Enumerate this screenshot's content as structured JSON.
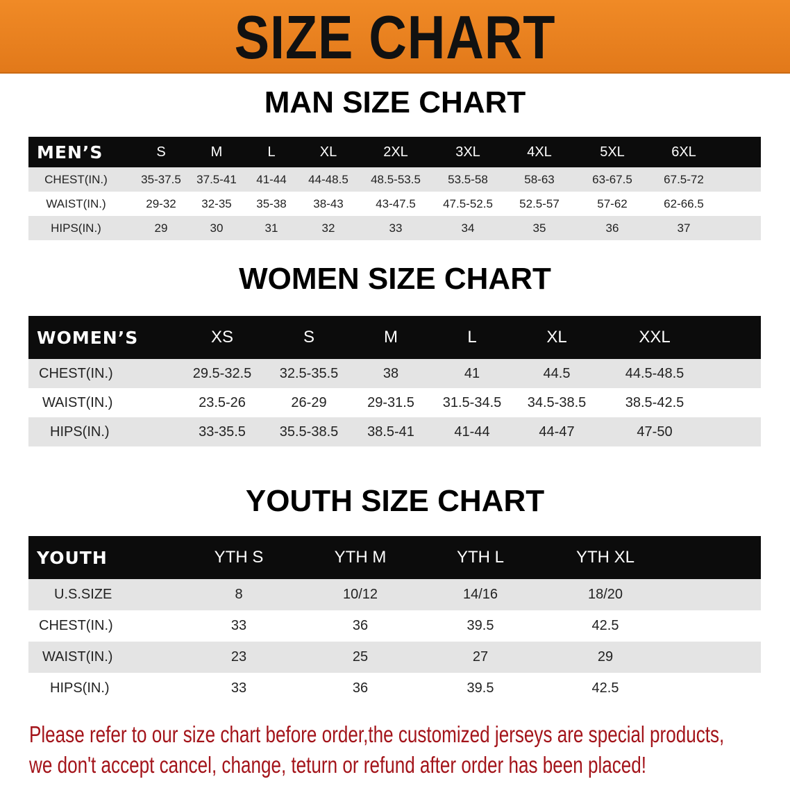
{
  "banner": {
    "title": "SIZE CHART",
    "color": "#e8821e"
  },
  "men": {
    "title": "MAN SIZE CHART",
    "header": [
      "MEN’S",
      "S",
      "M",
      "L",
      "XL",
      "2XL",
      "3XL",
      "4XL",
      "5XL",
      "6XL"
    ],
    "rows": [
      [
        "CHEST(IN.)",
        "35-37.5",
        "37.5-41",
        "41-44",
        "44-48.5",
        "48.5-53.5",
        "53.5-58",
        "58-63",
        "63-67.5",
        "67.5-72"
      ],
      [
        "WAIST(IN.)",
        "29-32",
        "32-35",
        "35-38",
        "38-43",
        "43-47.5",
        "47.5-52.5",
        "52.5-57",
        "57-62",
        "62-66.5"
      ],
      [
        "HIPS(IN.)",
        "29",
        "30",
        "31",
        "32",
        "33",
        "34",
        "35",
        "36",
        "37"
      ]
    ]
  },
  "women": {
    "title": "WOMEN SIZE CHART",
    "header": [
      "WOMEN’S",
      "XS",
      "S",
      "M",
      "L",
      "XL",
      "XXL"
    ],
    "rows": [
      [
        "CHEST(IN.)",
        "29.5-32.5",
        "32.5-35.5",
        "38",
        "41",
        "44.5",
        "44.5-48.5"
      ],
      [
        "WAIST(IN.)",
        "23.5-26",
        "26-29",
        "29-31.5",
        "31.5-34.5",
        "34.5-38.5",
        "38.5-42.5"
      ],
      [
        "HIPS(IN.)",
        "33-35.5",
        "35.5-38.5",
        "38.5-41",
        "41-44",
        "44-47",
        "47-50"
      ]
    ]
  },
  "youth": {
    "title": "YOUTH SIZE CHART",
    "header": [
      "YOUTH",
      "YTH S",
      "YTH M",
      "YTH L",
      "YTH XL"
    ],
    "rows": [
      [
        "U.S.SIZE",
        "8",
        "10/12",
        "14/16",
        "18/20"
      ],
      [
        "CHEST(IN.)",
        "33",
        "36",
        "39.5",
        "42.5"
      ],
      [
        "WAIST(IN.)",
        "23",
        "25",
        "27",
        "29"
      ],
      [
        "HIPS(IN.)",
        "33",
        "36",
        "39.5",
        "42.5"
      ]
    ]
  },
  "footer": {
    "line1": "Please refer to our size chart before order,the customized jerseys are special products,",
    "line2": "we don't accept cancel, change, teturn or refund after order has been placed!",
    "color": "#a3141a"
  }
}
